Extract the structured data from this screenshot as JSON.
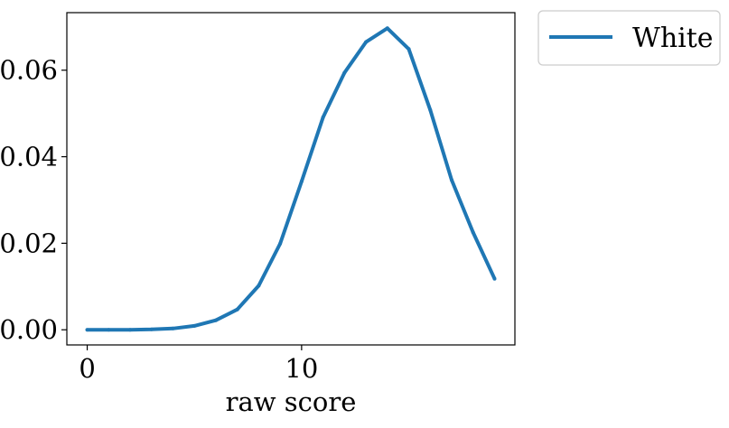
{
  "chart_data": {
    "type": "line",
    "title": "",
    "xlabel": "raw score",
    "ylabel": "",
    "xlim": [
      -0.95,
      19.95
    ],
    "ylim": [
      -0.0035,
      0.0733
    ],
    "x_ticks": [
      0,
      10
    ],
    "x_tick_labels": [
      "0",
      "10"
    ],
    "y_ticks": [
      0.0,
      0.02,
      0.04,
      0.06
    ],
    "y_tick_labels": [
      "0.00",
      "0.02",
      "0.04",
      "0.06"
    ],
    "grid": false,
    "legend_position": "outside-top-right",
    "series": [
      {
        "name": "White",
        "color": "#1f77b4",
        "x": [
          0,
          1,
          2,
          3,
          4,
          5,
          6,
          7,
          8,
          9,
          10,
          11,
          12,
          13,
          14,
          15,
          16,
          17,
          18,
          19
        ],
        "y": [
          0.0,
          0.0,
          0.0,
          0.0001,
          0.0003,
          0.0009,
          0.0022,
          0.0047,
          0.0102,
          0.0199,
          0.0343,
          0.0491,
          0.0594,
          0.0665,
          0.0697,
          0.0649,
          0.0508,
          0.0346,
          0.0225,
          0.0118
        ]
      }
    ]
  }
}
